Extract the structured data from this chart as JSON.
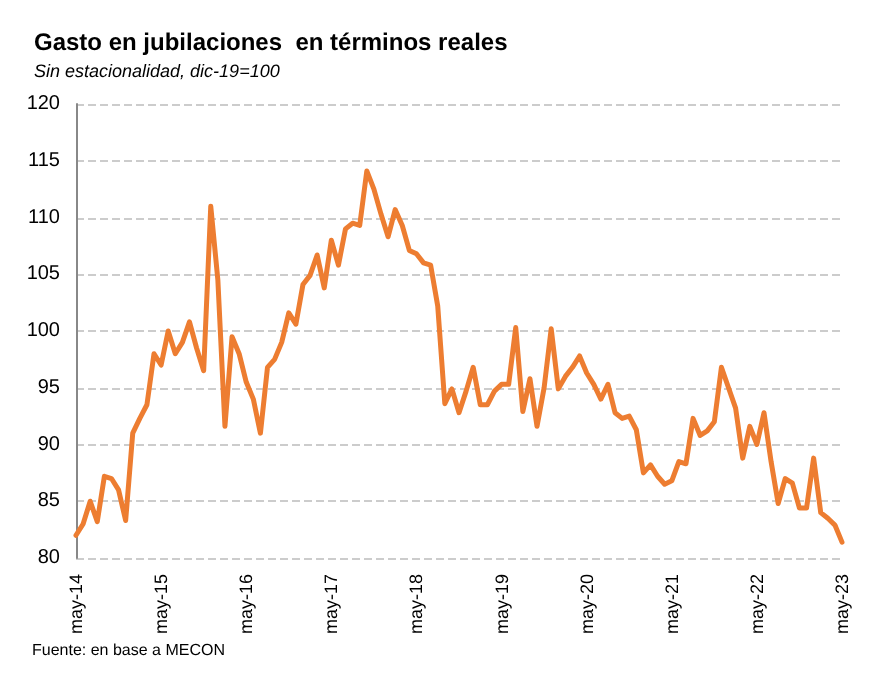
{
  "chart_data": {
    "type": "line",
    "title": "Gasto en jubilaciones  en términos reales",
    "subtitle": "Sin estacionalidad, dic-19=100",
    "annotations": [
      "Fuente: en base a MECON"
    ],
    "categories": [
      "may-14",
      null,
      null,
      null,
      null,
      null,
      null,
      null,
      null,
      null,
      null,
      null,
      "may-15",
      null,
      null,
      null,
      null,
      null,
      null,
      null,
      null,
      null,
      null,
      null,
      "may-16",
      null,
      null,
      null,
      null,
      null,
      null,
      null,
      null,
      null,
      null,
      null,
      "may-17",
      null,
      null,
      null,
      null,
      null,
      null,
      null,
      null,
      null,
      null,
      null,
      "may-18",
      null,
      null,
      null,
      null,
      null,
      null,
      null,
      null,
      null,
      null,
      null,
      "may-19",
      null,
      null,
      null,
      null,
      null,
      null,
      null,
      null,
      null,
      null,
      null,
      "may-20",
      null,
      null,
      null,
      null,
      null,
      null,
      null,
      null,
      null,
      null,
      null,
      "may-21",
      null,
      null,
      null,
      null,
      null,
      null,
      null,
      null,
      null,
      null,
      null,
      "may-22",
      null,
      null,
      null,
      null,
      null,
      null,
      null,
      null,
      null,
      null,
      null,
      "may-23"
    ],
    "values": [
      82,
      83,
      85,
      83.2,
      87.2,
      87,
      86,
      83.3,
      91,
      92.3,
      93.5,
      98,
      97,
      100,
      98,
      99,
      100.8,
      98.5,
      96.5,
      111,
      104.5,
      91.6,
      99.5,
      98,
      95.5,
      94,
      91,
      96.8,
      97.5,
      99,
      101.6,
      100.6,
      104.1,
      104.9,
      106.7,
      103.8,
      108,
      105.8,
      109,
      109.5,
      109.3,
      114.1,
      112.5,
      110.3,
      108.3,
      110.7,
      109.3,
      107.1,
      106.8,
      106,
      105.8,
      102.2,
      93.6,
      94.9,
      92.8,
      94.7,
      96.8,
      93.5,
      93.5,
      94.7,
      95.3,
      95.3,
      100.3,
      92.9,
      95.8,
      91.6,
      95,
      100.2,
      94.9,
      96,
      96.8,
      97.8,
      96.3,
      95.3,
      94,
      95.3,
      92.8,
      92.3,
      92.5,
      91.3,
      87.5,
      88.2,
      87.2,
      86.5,
      86.8,
      88.5,
      88.3,
      92.3,
      90.8,
      91.2,
      92,
      96.8,
      95,
      93.2,
      88.8,
      91.6,
      90,
      92.8,
      88.5,
      84.8,
      87,
      86.6,
      84.4,
      84.4,
      88.8,
      84,
      83.5,
      82.9,
      81.4
    ],
    "color": "#ed7d31",
    "ylim": [
      80,
      120
    ],
    "yticks": [
      80,
      85,
      90,
      95,
      100,
      105,
      110,
      115,
      120
    ],
    "grid": "y",
    "line_style": "solid",
    "marker": "none"
  }
}
